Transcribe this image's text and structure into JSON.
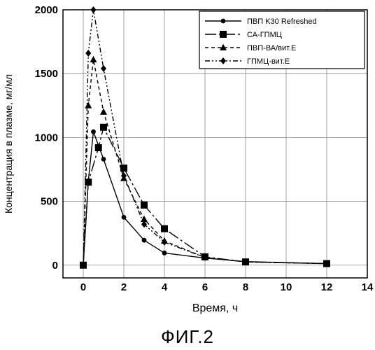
{
  "figure_caption": "ФИГ.2",
  "chart_data": {
    "type": "line",
    "xlabel": "Время, ч",
    "ylabel": "Концентрация в плазме, мг/мл",
    "xlim": [
      -1,
      14
    ],
    "ylim": [
      -100,
      2000
    ],
    "xticks": [
      0,
      2,
      4,
      6,
      8,
      10,
      12,
      14
    ],
    "yticks": [
      0,
      500,
      1000,
      1500,
      2000
    ],
    "grid": true,
    "legend_position": "top-right",
    "series": [
      {
        "name": "ПВП K30 Refreshed",
        "marker": "circle",
        "dash": "",
        "x": [
          0,
          0.25,
          0.5,
          1,
          2,
          3,
          4,
          6,
          8,
          12
        ],
        "y": [
          0,
          660,
          1045,
          830,
          375,
          195,
          95,
          55,
          28,
          12
        ]
      },
      {
        "name": "СА-ГПМЦ",
        "marker": "square",
        "dash": "16 4 3 4",
        "x": [
          0,
          0.25,
          0.75,
          1,
          2,
          3,
          4,
          6,
          8,
          12
        ],
        "y": [
          0,
          650,
          920,
          1080,
          760,
          470,
          285,
          65,
          25,
          12
        ]
      },
      {
        "name": "ПВП-ВА/вит.Е",
        "marker": "triangle",
        "dash": "5 4",
        "x": [
          0,
          0.25,
          0.5,
          1,
          2,
          3,
          4,
          6,
          8,
          12
        ],
        "y": [
          0,
          1250,
          1610,
          1200,
          680,
          360,
          190,
          60,
          25,
          12
        ]
      },
      {
        "name": "ГПМЦ-вит.Е",
        "marker": "diamond",
        "dash": "7 3 2 3 2 3",
        "x": [
          0,
          0.25,
          0.5,
          1,
          2,
          3,
          4,
          6,
          8,
          12
        ],
        "y": [
          0,
          1660,
          2000,
          1540,
          700,
          320,
          180,
          60,
          25,
          12
        ]
      }
    ]
  }
}
